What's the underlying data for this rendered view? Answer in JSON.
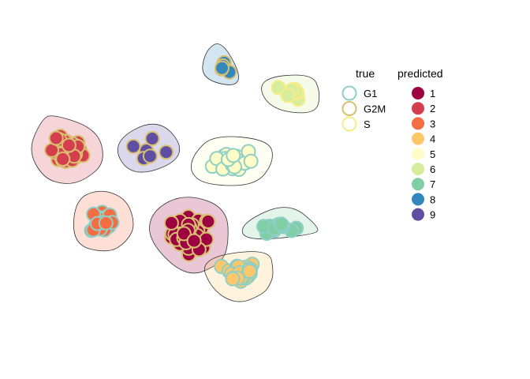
{
  "chart_data": {
    "type": "scatter",
    "title": "",
    "xlabel": "",
    "ylabel": "",
    "grid": false,
    "axes_visible": false,
    "legend_placement": "right",
    "legend_true": {
      "title": "true",
      "entries": [
        {
          "label": "G1",
          "border": "#8fcfc6"
        },
        {
          "label": "G2M",
          "border": "#d8c070"
        },
        {
          "label": "S",
          "border": "#f5ec8a"
        }
      ]
    },
    "legend_predicted": {
      "title": "predicted",
      "entries": [
        {
          "label": "1",
          "color": "#9e0142"
        },
        {
          "label": "2",
          "color": "#d53e4f"
        },
        {
          "label": "3",
          "color": "#f46d43"
        },
        {
          "label": "4",
          "color": "#fdc76a"
        },
        {
          "label": "5",
          "color": "#fffcc8"
        },
        {
          "label": "6",
          "color": "#d6ee9b"
        },
        {
          "label": "7",
          "color": "#7fcea4"
        },
        {
          "label": "8",
          "color": "#3288bd"
        },
        {
          "label": "9",
          "color": "#5e4fa2"
        }
      ]
    },
    "clusters": [
      {
        "predicted": "1",
        "true": "G2M",
        "hull_fill": "#9e0142",
        "count": 55,
        "center": [
          2.6,
          -1.2
        ],
        "spread": [
          0.55,
          0.45
        ]
      },
      {
        "predicted": "2",
        "true": "G2M",
        "hull_fill": "#d53e4f",
        "count": 45,
        "center": [
          -1.6,
          1.5
        ],
        "spread": [
          0.45,
          0.35
        ]
      },
      {
        "predicted": "3",
        "true": "G1",
        "hull_fill": "#f46d43",
        "count": 18,
        "center": [
          -0.4,
          -0.8
        ],
        "spread": [
          0.3,
          0.35
        ]
      },
      {
        "predicted": "4",
        "true": "G1",
        "hull_fill": "#fdc76a",
        "count": 30,
        "center": [
          4.2,
          -2.5
        ],
        "spread": [
          0.45,
          0.3
        ]
      },
      {
        "predicted": "5",
        "true": "G1",
        "hull_fill": "#fffcc8",
        "count": 26,
        "center": [
          4.0,
          1.2
        ],
        "spread": [
          0.55,
          0.35
        ]
      },
      {
        "predicted": "6",
        "true": "S",
        "hull_fill": "#d6ee9b",
        "count": 8,
        "center": [
          6.0,
          3.5
        ],
        "spread": [
          0.25,
          0.2
        ]
      },
      {
        "predicted": "7",
        "true": "G1",
        "hull_fill": "#7fcea4",
        "count": 12,
        "center": [
          5.4,
          -1.0
        ],
        "spread": [
          0.5,
          0.15
        ]
      },
      {
        "predicted": "8",
        "true": "G2M",
        "hull_fill": "#3288bd",
        "count": 5,
        "center": [
          3.6,
          4.3
        ],
        "spread": [
          0.15,
          0.12
        ]
      },
      {
        "predicted": "9",
        "true": "G2M",
        "hull_fill": "#5e4fa2",
        "count": 6,
        "center": [
          1.3,
          1.4
        ],
        "spread": [
          0.6,
          0.4
        ]
      }
    ],
    "xlim": [
      -3,
      7.5
    ],
    "ylim": [
      -5,
      5.5
    ]
  }
}
